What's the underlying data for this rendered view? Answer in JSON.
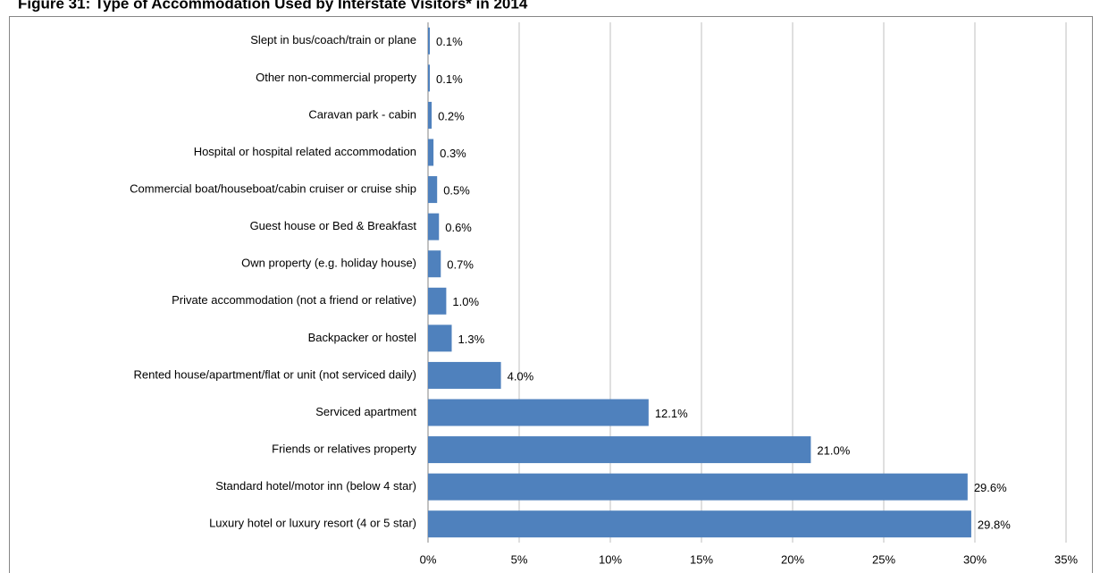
{
  "chart_data": {
    "type": "barh",
    "title": "Figure 31:  Type of Accommodation Used by Interstate Visitors* in 2014",
    "categories": [
      "Slept in bus/coach/train or plane",
      "Other non-commercial property",
      "Caravan park - cabin",
      "Hospital or hospital related accommodation",
      "Commercial boat/houseboat/cabin cruiser or cruise ship",
      "Guest house or Bed & Breakfast",
      "Own property (e.g. holiday house)",
      "Private accommodation (not a friend or relative)",
      "Backpacker or hostel",
      "Rented house/apartment/flat or unit (not serviced daily)",
      "Serviced apartment",
      "Friends or relatives property",
      "Standard hotel/motor inn (below 4 star)",
      "Luxury hotel or luxury resort (4 or 5 star)"
    ],
    "values": [
      0.1,
      0.1,
      0.2,
      0.3,
      0.5,
      0.6,
      0.7,
      1.0,
      1.3,
      4.0,
      12.1,
      21.0,
      29.6,
      29.8
    ],
    "value_labels": [
      "0.1%",
      "0.1%",
      "0.2%",
      "0.3%",
      "0.5%",
      "0.6%",
      "0.7%",
      "1.0%",
      "1.3%",
      "4.0%",
      "12.1%",
      "21.0%",
      "29.6%",
      "29.8%"
    ],
    "color": "#4f81bd",
    "xlim": [
      0,
      35
    ],
    "xticks": [
      {
        "value": 0,
        "label": "0%"
      },
      {
        "value": 5,
        "label": "5%"
      },
      {
        "value": 10,
        "label": "10%"
      },
      {
        "value": 15,
        "label": "15%"
      },
      {
        "value": 20,
        "label": "20%"
      },
      {
        "value": 25,
        "label": "25%"
      },
      {
        "value": 30,
        "label": "30%"
      },
      {
        "value": 35,
        "label": "35%"
      }
    ],
    "grid": true
  }
}
